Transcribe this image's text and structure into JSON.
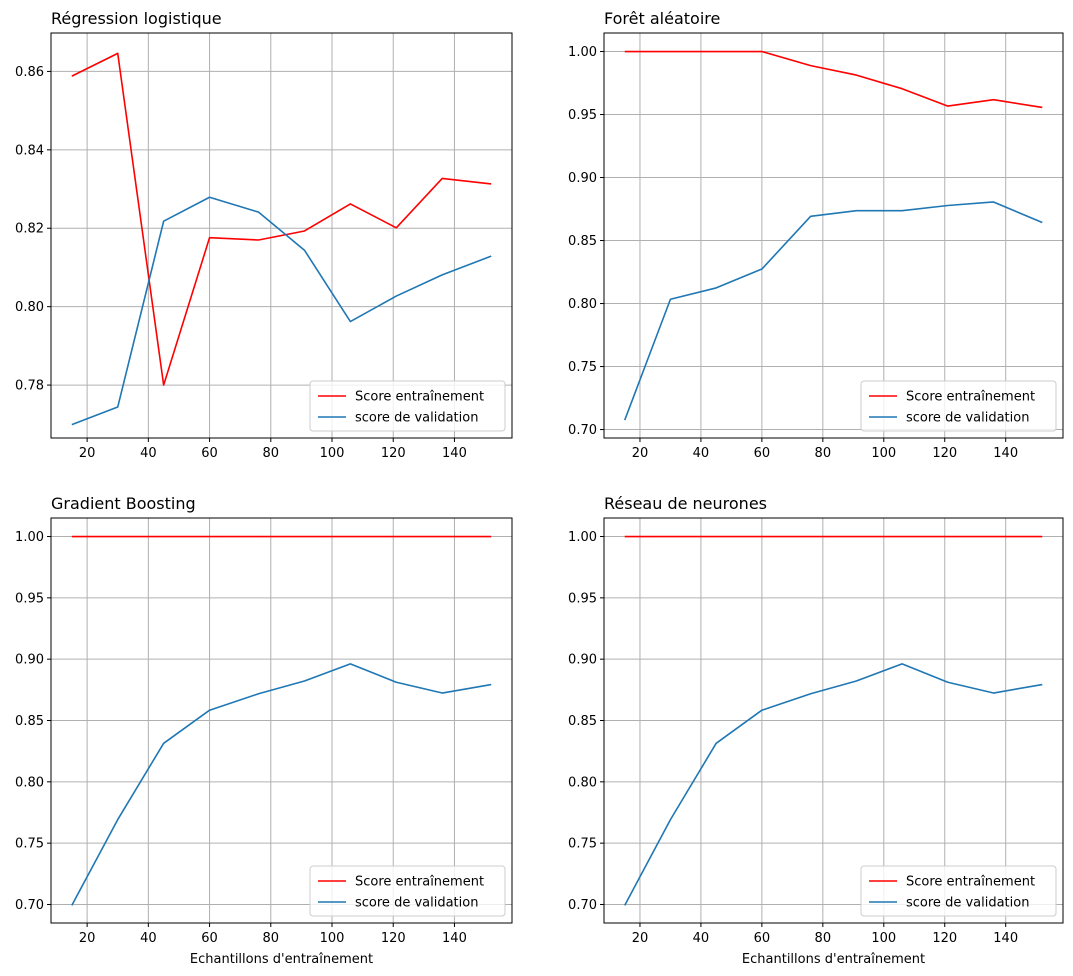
{
  "colors": {
    "train": "#ff0000",
    "validation": "#1f77b4",
    "grid": "#b0b0b0"
  },
  "chart_data": [
    {
      "type": "line",
      "title": "Régression logistique",
      "xlabel": "",
      "ylabel": "",
      "x": [
        15,
        30,
        45,
        60,
        76,
        91,
        106,
        121,
        136,
        152
      ],
      "xlim": [
        8.2,
        158.8
      ],
      "ylim": [
        0.7665,
        0.8698
      ],
      "xticks": [
        20,
        40,
        60,
        80,
        100,
        120,
        140
      ],
      "yticks": [
        0.78,
        0.8,
        0.82,
        0.84,
        0.86
      ],
      "ytick_decimals": 2,
      "grid": true,
      "legend_loc": "lower right",
      "series": [
        {
          "name": "Score entraînement",
          "color": "#ff0000",
          "values": [
            0.8588,
            0.8646,
            0.78,
            0.8176,
            0.817,
            0.8193,
            0.8262,
            0.8201,
            0.8327,
            0.8313
          ]
        },
        {
          "name": "score de validation",
          "color": "#1f77b4",
          "values": [
            0.7699,
            0.7744,
            0.8218,
            0.8279,
            0.8241,
            0.8144,
            0.7962,
            0.8027,
            0.8081,
            0.8129
          ]
        }
      ]
    },
    {
      "type": "line",
      "title": "Forêt aléatoire",
      "xlabel": "",
      "ylabel": "",
      "x": [
        15,
        30,
        45,
        60,
        76,
        91,
        106,
        121,
        136,
        152
      ],
      "xlim": [
        8.2,
        158.8
      ],
      "ylim": [
        0.6933,
        1.0147
      ],
      "xticks": [
        20,
        40,
        60,
        80,
        100,
        120,
        140
      ],
      "yticks": [
        0.7,
        0.75,
        0.8,
        0.85,
        0.9,
        0.95,
        1.0
      ],
      "ytick_decimals": 2,
      "grid": true,
      "legend_loc": "lower right",
      "series": [
        {
          "name": "Score entraînement",
          "color": "#ff0000",
          "values": [
            1.0,
            1.0,
            1.0,
            1.0,
            0.9888,
            0.9813,
            0.9705,
            0.9567,
            0.9618,
            0.9556
          ]
        },
        {
          "name": "score de validation",
          "color": "#1f77b4",
          "values": [
            0.7075,
            0.8034,
            0.8124,
            0.8274,
            0.8692,
            0.8737,
            0.8737,
            0.8778,
            0.8806,
            0.8643
          ]
        }
      ]
    },
    {
      "type": "line",
      "title": "Gradient Boosting",
      "xlabel": "Echantillons d'entraînement",
      "ylabel": "",
      "x": [
        15,
        30,
        45,
        60,
        76,
        91,
        106,
        121,
        136,
        152
      ],
      "xlim": [
        8.2,
        158.8
      ],
      "ylim": [
        0.6849,
        1.0151
      ],
      "xticks": [
        20,
        40,
        60,
        80,
        100,
        120,
        140
      ],
      "yticks": [
        0.7,
        0.75,
        0.8,
        0.85,
        0.9,
        0.95,
        1.0
      ],
      "ytick_decimals": 2,
      "grid": true,
      "legend_loc": "lower right",
      "series": [
        {
          "name": "Score entraînement",
          "color": "#ff0000",
          "values": [
            1.0,
            1.0,
            1.0,
            1.0,
            1.0,
            1.0,
            1.0,
            1.0,
            1.0,
            1.0
          ]
        },
        {
          "name": "score de validation",
          "color": "#1f77b4",
          "values": [
            0.6993,
            0.7692,
            0.8314,
            0.8584,
            0.8718,
            0.8822,
            0.8962,
            0.8812,
            0.8724,
            0.8793
          ]
        }
      ]
    },
    {
      "type": "line",
      "title": "Réseau de neurones",
      "xlabel": "Echantillons d'entraînement",
      "ylabel": "",
      "x": [
        15,
        30,
        45,
        60,
        76,
        91,
        106,
        121,
        136,
        152
      ],
      "xlim": [
        8.2,
        158.8
      ],
      "ylim": [
        0.6849,
        1.0151
      ],
      "xticks": [
        20,
        40,
        60,
        80,
        100,
        120,
        140
      ],
      "yticks": [
        0.7,
        0.75,
        0.8,
        0.85,
        0.9,
        0.95,
        1.0
      ],
      "ytick_decimals": 2,
      "grid": true,
      "legend_loc": "lower right",
      "series": [
        {
          "name": "Score entraînement",
          "color": "#ff0000",
          "values": [
            1.0,
            1.0,
            1.0,
            1.0,
            1.0,
            1.0,
            1.0,
            1.0,
            1.0,
            1.0
          ]
        },
        {
          "name": "score de validation",
          "color": "#1f77b4",
          "values": [
            0.6993,
            0.7692,
            0.8314,
            0.8584,
            0.8718,
            0.8822,
            0.8962,
            0.8812,
            0.8724,
            0.8793
          ]
        }
      ]
    }
  ]
}
